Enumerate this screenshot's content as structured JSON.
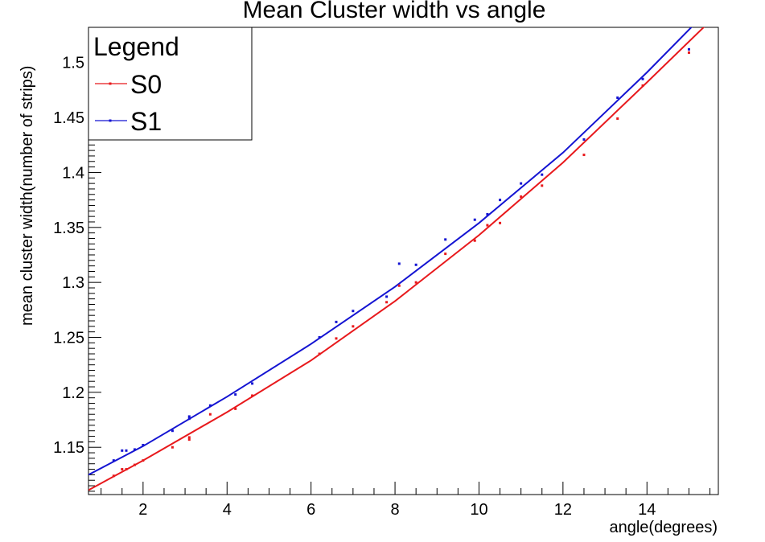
{
  "chart_data": {
    "type": "scatter",
    "title": "Mean Cluster width vs angle",
    "xlabel": "angle(degrees)",
    "ylabel": "mean cluster width(number of strips)",
    "xlim": [
      0.7,
      15.7
    ],
    "ylim": [
      1.107,
      1.532
    ],
    "x_ticks": [
      2,
      4,
      6,
      8,
      10,
      12,
      14
    ],
    "x_tick_labels": [
      "2",
      "4",
      "6",
      "8",
      "10",
      "12",
      "14"
    ],
    "y_ticks": [
      1.15,
      1.2,
      1.25,
      1.3,
      1.35,
      1.4,
      1.45,
      1.5
    ],
    "y_tick_labels": [
      "1.15",
      "1.2",
      "1.25",
      "1.3",
      "1.35",
      "1.4",
      "1.45",
      "1.5"
    ],
    "grid": false,
    "legend": {
      "title": "Legend",
      "position": "top-left",
      "entries": [
        "S0",
        "S1"
      ]
    },
    "series": [
      {
        "name": "S0",
        "color": "#e8191c",
        "x": [
          1.3,
          1.5,
          1.6,
          1.8,
          2.0,
          2.7,
          3.1,
          3.1,
          3.6,
          4.2,
          4.6,
          6.2,
          6.6,
          7.0,
          7.8,
          8.1,
          8.5,
          9.2,
          9.9,
          10.2,
          10.5,
          11.0,
          11.5,
          12.5,
          13.3,
          13.9,
          15.0
        ],
        "y": [
          1.124,
          1.13,
          1.13,
          1.134,
          1.138,
          1.15,
          1.157,
          1.159,
          1.18,
          1.185,
          1.197,
          1.235,
          1.249,
          1.26,
          1.282,
          1.297,
          1.3,
          1.326,
          1.338,
          1.352,
          1.354,
          1.378,
          1.388,
          1.416,
          1.449,
          1.479,
          1.509
        ],
        "fit": {
          "x": [
            0.7,
            2,
            4,
            6,
            8,
            10,
            12,
            14,
            15.7
          ],
          "y": [
            1.111,
            1.138,
            1.182,
            1.229,
            1.283,
            1.343,
            1.409,
            1.482,
            1.545
          ]
        }
      },
      {
        "name": "S1",
        "color": "#1414d2",
        "x": [
          1.3,
          1.5,
          1.6,
          1.8,
          2.0,
          2.7,
          3.1,
          3.1,
          3.6,
          4.2,
          4.6,
          6.2,
          6.6,
          7.0,
          7.8,
          8.1,
          8.5,
          9.2,
          9.9,
          10.2,
          10.5,
          11.0,
          11.5,
          12.5,
          13.3,
          13.9,
          15.0
        ],
        "y": [
          1.138,
          1.147,
          1.147,
          1.148,
          1.152,
          1.165,
          1.176,
          1.178,
          1.188,
          1.198,
          1.208,
          1.25,
          1.264,
          1.274,
          1.287,
          1.317,
          1.316,
          1.339,
          1.357,
          1.362,
          1.375,
          1.39,
          1.398,
          1.43,
          1.468,
          1.485,
          1.512
        ],
        "fit": {
          "x": [
            0.7,
            2,
            4,
            6,
            8,
            10,
            12,
            14,
            15.7
          ],
          "y": [
            1.125,
            1.151,
            1.196,
            1.244,
            1.296,
            1.354,
            1.418,
            1.491,
            1.557
          ]
        }
      }
    ]
  }
}
